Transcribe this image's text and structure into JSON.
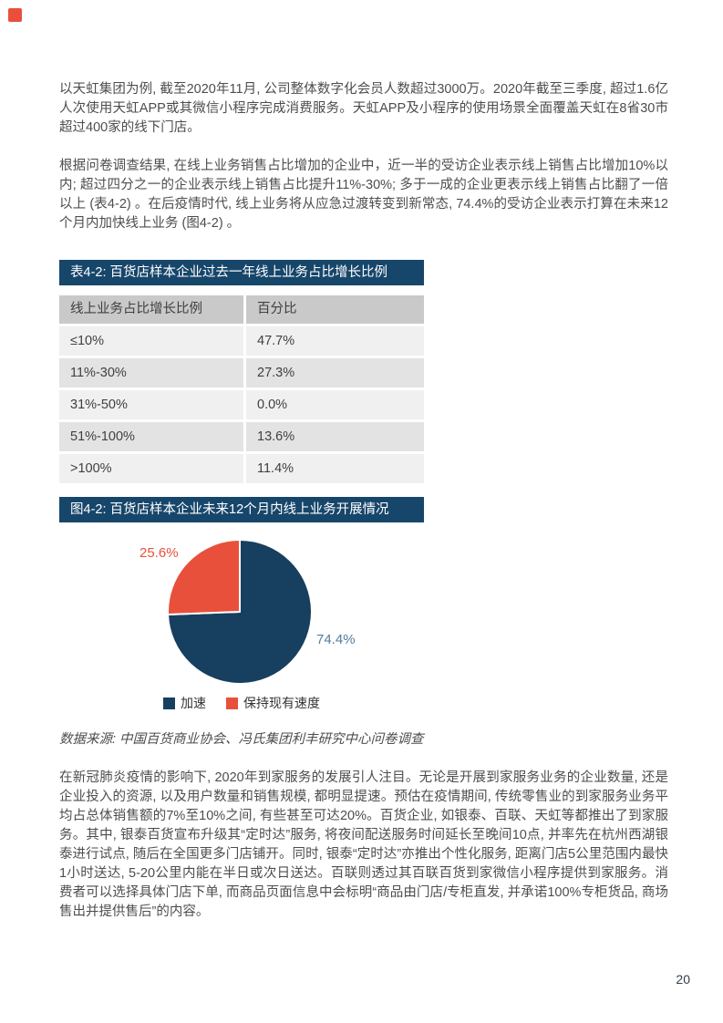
{
  "page": {
    "number": "20"
  },
  "logo": {
    "color": "#e8503c"
  },
  "paragraphs": {
    "p1": "以天虹集团为例, 截至2020年11月, 公司整体数字化会员人数超过3000万。2020年截至三季度, 超过1.6亿人次使用天虹APP或其微信小程序完成消费服务。天虹APP及小程序的使用场景全面覆盖天虹在8省30市超过400家的线下门店。",
    "p2": "根据问卷调查结果, 在线上业务销售占比增加的企业中，近一半的受访企业表示线上销售占比增加10%以内; 超过四分之一的企业表示线上销售占比提升11%-30%; 多于一成的企业更表示线上销售占比翻了一倍以上 (表4-2) 。在后疫情时代, 线上业务将从应急过渡转变到新常态, 74.4%的受访企业表示打算在未来12个月内加快线上业务 (图4-2) 。",
    "p3": "在新冠肺炎疫情的影响下, 2020年到家服务的发展引人注目。无论是开展到家服务业务的企业数量, 还是企业投入的资源, 以及用户数量和销售规模, 都明显提速。预估在疫情期间, 传统零售业的到家服务业务平均占总体销售额的7%至10%之间, 有些甚至可达20%。百货企业, 如银泰、百联、天虹等都推出了到家服务。其中, 银泰百货宣布升级其“定时达”服务, 将夜间配送服务时间延长至晚间10点, 并率先在杭州西湖银泰进行试点, 随后在全国更多门店铺开。同时, 银泰“定时达”亦推出个性化服务, 距离门店5公里范围内最快1小时送达, 5-20公里内能在半日或次日送达。百联则透过其百联百货到家微信小程序提供到家服务。消费者可以选择具体门店下单, 而商品页面信息中会标明“商品由门店/专柜直发, 并承诺100%专柜货品, 商场售出并提供售后”的内容。"
  },
  "table": {
    "title": "表4-2:   百货店样本企业过去一年线上业务占比增长比例",
    "headers": [
      "线上业务占比增长比例",
      "百分比"
    ],
    "rows": [
      [
        "≤10%",
        "47.7%"
      ],
      [
        "11%-30%",
        "27.3%"
      ],
      [
        "31%-50%",
        "0.0%"
      ],
      [
        "51%-100%",
        "13.6%"
      ],
      [
        ">100%",
        "11.4%"
      ]
    ]
  },
  "figure": {
    "title": "图4-2: 百货店样本企业未来12个月内线上业务开展情况",
    "source": "数据来源: 中国百货商业协会、冯氏集团利丰研究中心问卷调查"
  },
  "chart_data": {
    "type": "pie",
    "title": "图4-2: 百货店样本企业未来12个月内线上业务开展情况",
    "labels": [
      "加速",
      "保持现有速度"
    ],
    "values": [
      74.4,
      25.6
    ],
    "data_labels": [
      "74.4%",
      "25.6%"
    ],
    "colors": [
      "#173f5f",
      "#e8503c"
    ],
    "start_angle": "top",
    "direction": "clockwise",
    "legend_position": "bottom",
    "label_colors": [
      "#4f7ea1",
      "#e8503c"
    ]
  },
  "colors": {
    "header_bar_navy": "#17466b",
    "pie_navy": "#173f5f",
    "accent_red": "#e8503c",
    "table_header_gray": "#c9c9c9",
    "row_light": "#f0f0f0",
    "row_dark": "#e3e3e3",
    "body_text": "#4d4d4d"
  }
}
